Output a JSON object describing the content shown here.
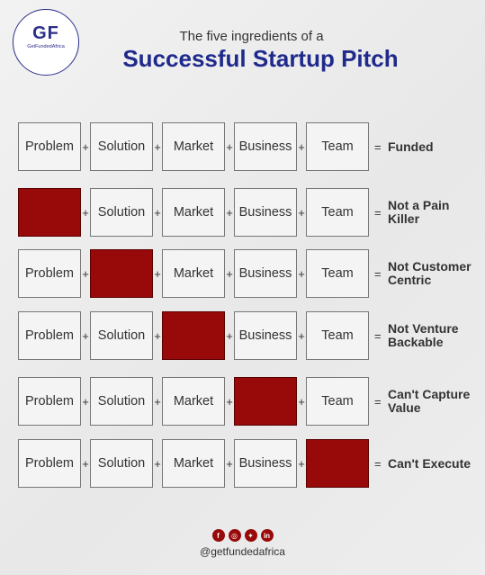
{
  "logo": {
    "mark": "GF",
    "text": "GetFundedAfrica"
  },
  "heading": {
    "subtitle": "The five ingredients of a",
    "title": "Successful Startup Pitch"
  },
  "symbols": {
    "plus": "+",
    "equals": "="
  },
  "rows": [
    {
      "cells": [
        "Problem",
        "Solution",
        "Market",
        "Business",
        "Team"
      ],
      "missing": -1,
      "result": "Funded"
    },
    {
      "cells": [
        "",
        "Solution",
        "Market",
        "Business",
        "Team"
      ],
      "missing": 0,
      "result": "Not a Pain Killer"
    },
    {
      "cells": [
        "Problem",
        "",
        "Market",
        "Business",
        "Team"
      ],
      "missing": 1,
      "result": "Not Customer Centric"
    },
    {
      "cells": [
        "Problem",
        "Solution",
        "",
        "Business",
        "Team"
      ],
      "missing": 2,
      "result": "Not Venture Backable"
    },
    {
      "cells": [
        "Problem",
        "Solution",
        "Market",
        "",
        "Team"
      ],
      "missing": 3,
      "result": "Can't Capture Value"
    },
    {
      "cells": [
        "Problem",
        "Solution",
        "Market",
        "Business",
        ""
      ],
      "missing": 4,
      "result": "Can't Execute"
    }
  ],
  "colors": {
    "missing": "#980909",
    "title": "#1f2a8c"
  },
  "footer": {
    "social_icons": [
      "facebook-icon",
      "instagram-icon",
      "twitter-icon",
      "linkedin-icon"
    ],
    "handle": "@getfundedafrica"
  }
}
